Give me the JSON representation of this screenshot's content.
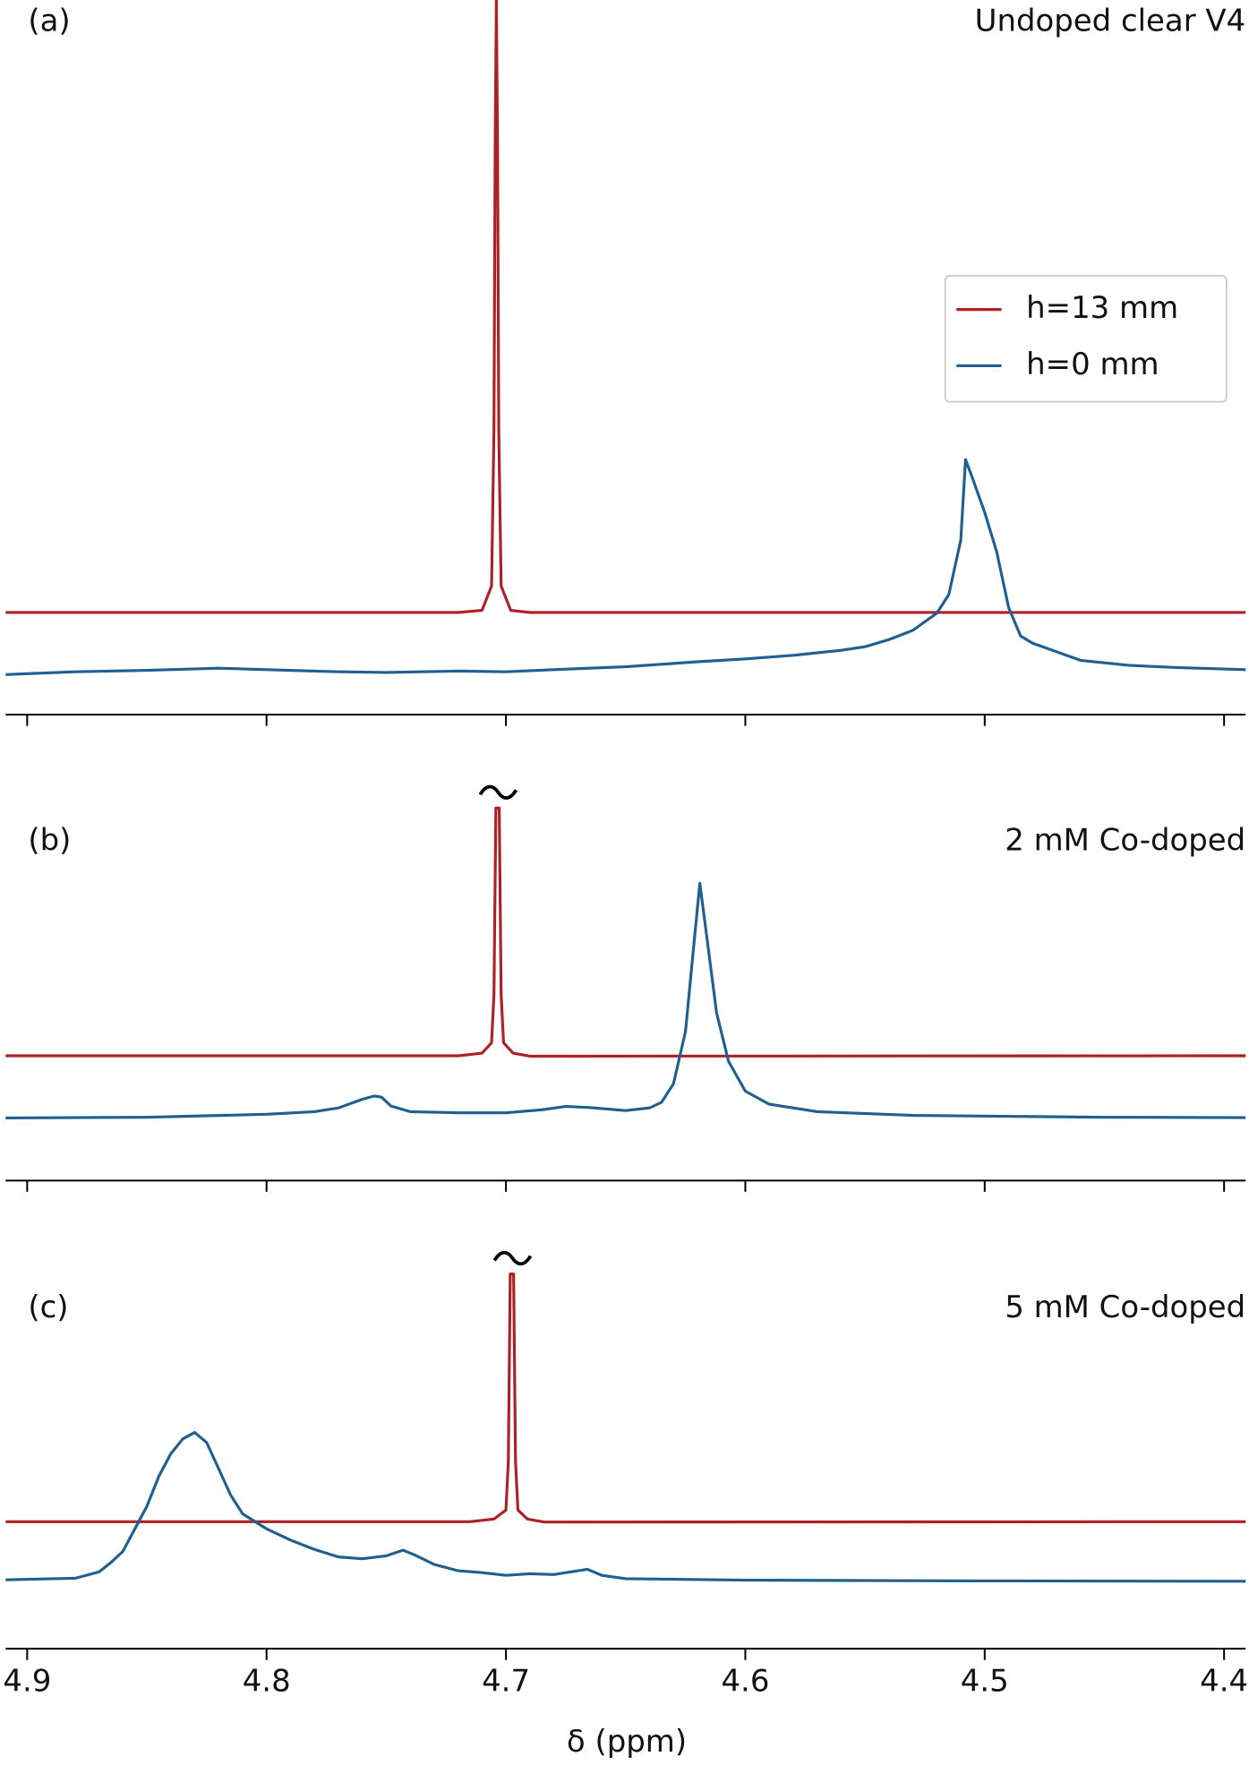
{
  "chart_data": [
    {
      "type": "line",
      "panel_label": "(a)",
      "annotation": "Undoped clear V4",
      "xlim": [
        4.909,
        4.391
      ],
      "xticks": [
        4.9,
        4.8,
        4.7,
        4.6,
        4.5,
        4.4
      ],
      "tick_labels": false,
      "ylim": [
        0,
        100
      ],
      "legend": "upper right",
      "axis_break": false,
      "series": [
        {
          "name": "h=13 mm",
          "color": "#ae2024",
          "x": [
            4.909,
            4.72,
            4.71,
            4.706,
            4.705,
            4.7045,
            4.704,
            4.7035,
            4.703,
            4.702,
            4.698,
            4.69,
            4.391
          ],
          "values": [
            14.3,
            14.3,
            14.6,
            18,
            40,
            80,
            100,
            80,
            40,
            18,
            14.6,
            14.3,
            14.3
          ]
        },
        {
          "name": "h=0 mm",
          "color": "#1f5f91",
          "x": [
            4.909,
            4.88,
            4.85,
            4.82,
            4.8,
            4.77,
            4.75,
            4.72,
            4.7,
            4.68,
            4.65,
            4.62,
            4.6,
            4.58,
            4.56,
            4.55,
            4.54,
            4.53,
            4.52,
            4.515,
            4.51,
            4.508,
            4.505,
            4.5,
            4.495,
            4.49,
            4.485,
            4.48,
            4.47,
            4.46,
            4.44,
            4.42,
            4.391
          ],
          "values": [
            5.6,
            6.0,
            6.2,
            6.5,
            6.3,
            6.0,
            5.9,
            6.1,
            6.0,
            6.3,
            6.7,
            7.4,
            7.8,
            8.3,
            9.0,
            9.5,
            10.5,
            11.8,
            14.2,
            16.8,
            24.4,
            35.7,
            33,
            28.3,
            22.8,
            15,
            11,
            10.0,
            8.8,
            7.6,
            6.9,
            6.6,
            6.3
          ]
        }
      ]
    },
    {
      "type": "line",
      "panel_label": "(b)",
      "annotation": "2 mM Co-doped",
      "xlim": [
        4.909,
        4.391
      ],
      "xticks": [
        4.9,
        4.8,
        4.7,
        4.6,
        4.5,
        4.4
      ],
      "tick_labels": false,
      "ylim": [
        0,
        100
      ],
      "axis_break": true,
      "series": [
        {
          "color": "#ae2024",
          "x": [
            4.909,
            4.72,
            4.71,
            4.706,
            4.705,
            4.7042,
            4.7028,
            4.702,
            4.701,
            4.697,
            4.69,
            4.391
          ],
          "values": [
            33.5,
            33.5,
            34.2,
            37,
            50,
            100,
            100,
            50,
            37,
            34.2,
            33.4,
            33.5
          ]
        },
        {
          "color": "#1f5f91",
          "x": [
            4.909,
            4.85,
            4.8,
            4.78,
            4.77,
            4.76,
            4.755,
            4.752,
            4.748,
            4.74,
            4.72,
            4.7,
            4.685,
            4.675,
            4.665,
            4.65,
            4.64,
            4.635,
            4.63,
            4.625,
            4.622,
            4.619,
            4.616,
            4.612,
            4.607,
            4.6,
            4.59,
            4.57,
            4.53,
            4.45,
            4.391
          ],
          "values": [
            16.8,
            17.0,
            17.8,
            18.5,
            19.5,
            21.8,
            22.7,
            22.4,
            20.0,
            18.5,
            18.2,
            18.2,
            19.0,
            19.9,
            19.6,
            18.8,
            19.5,
            21,
            26,
            40,
            60,
            79.8,
            65,
            45,
            32,
            24,
            20.5,
            18.5,
            17.5,
            17.0,
            16.9
          ]
        }
      ]
    },
    {
      "type": "line",
      "panel_label": "(c)",
      "annotation": "5 mM Co-doped",
      "xlim": [
        4.909,
        4.391
      ],
      "xticks": [
        4.9,
        4.8,
        4.7,
        4.6,
        4.5,
        4.4
      ],
      "tick_labels": true,
      "xlabel": "δ (ppm)",
      "ylim": [
        0,
        100
      ],
      "axis_break": true,
      "series": [
        {
          "color": "#ae2024",
          "x": [
            4.909,
            4.715,
            4.705,
            4.7,
            4.699,
            4.6982,
            4.6968,
            4.696,
            4.695,
            4.691,
            4.684,
            4.391
          ],
          "values": [
            33.9,
            33.9,
            34.6,
            37,
            50,
            100,
            100,
            50,
            37,
            34.6,
            33.8,
            33.9
          ]
        },
        {
          "color": "#1f5f91",
          "x": [
            4.909,
            4.88,
            4.87,
            4.865,
            4.86,
            4.855,
            4.85,
            4.845,
            4.84,
            4.835,
            4.83,
            4.825,
            4.82,
            4.815,
            4.81,
            4.8,
            4.79,
            4.78,
            4.77,
            4.76,
            4.75,
            4.743,
            4.738,
            4.73,
            4.72,
            4.71,
            4.7,
            4.69,
            4.68,
            4.67,
            4.666,
            4.66,
            4.65,
            4.6,
            4.5,
            4.391
          ],
          "values": [
            18.4,
            18.8,
            20.5,
            23,
            26,
            32,
            38,
            46,
            52,
            56,
            57.7,
            55,
            48,
            41,
            36,
            32,
            29,
            26.5,
            24.5,
            24,
            24.8,
            26.3,
            25,
            22.5,
            20.8,
            20.3,
            19.6,
            20.0,
            19.8,
            20.8,
            21.2,
            19.6,
            18.7,
            18.3,
            18.1,
            18.0
          ]
        }
      ]
    }
  ]
}
